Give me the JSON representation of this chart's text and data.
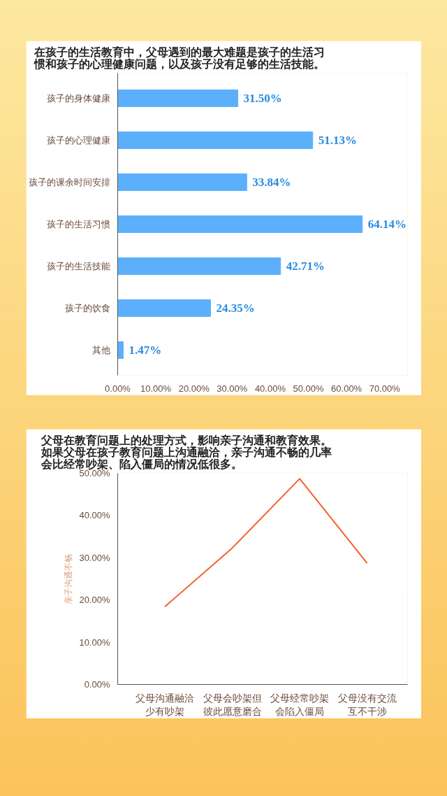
{
  "chart_data": [
    {
      "type": "bar",
      "orientation": "horizontal",
      "title": "在孩子的生活教育中，父母遇到的最大难题是孩子的生活习惯和孩子的心理健康问题，以及孩子没有足够的生活技能。",
      "categories": [
        "孩子的身体健康",
        "孩子的心理健康",
        "孩子的课余时间安排",
        "孩子的生活习惯",
        "孩子的生活技能",
        "孩子的饮食",
        "其他"
      ],
      "values": [
        31.5,
        51.13,
        33.84,
        64.14,
        42.71,
        24.35,
        1.47
      ],
      "value_labels": [
        "31.50%",
        "51.13%",
        "33.84%",
        "64.14%",
        "42.71%",
        "24.35%",
        "1.47%"
      ],
      "color": "#5cb0fb",
      "xlim": [
        0,
        76
      ],
      "xticks": [
        {
          "value": 0,
          "label": "0.00%"
        },
        {
          "value": 10,
          "label": "10.00%"
        },
        {
          "value": 20,
          "label": "20.00%"
        },
        {
          "value": 30,
          "label": "30.00%"
        },
        {
          "value": 40,
          "label": "40.00%"
        },
        {
          "value": 50,
          "label": "50.00%"
        },
        {
          "value": 60,
          "label": "60.00%"
        },
        {
          "value": 70,
          "label": "70.00%"
        }
      ]
    },
    {
      "type": "line",
      "title": "父母在教育问题上的处理方式，影响亲子沟通和教育效果。如果父母在孩子教育问题上沟通融洽，亲子沟通不畅的几率会比经常吵架、陷入僵局的情况低很多。",
      "ylabel": "亲子沟通不畅",
      "categories": [
        "父母沟通融洽少有吵架",
        "父母会吵架但彼此愿意磨合",
        "父母经常吵架会陷入僵局",
        "父母没有交流互不干涉"
      ],
      "values": [
        18.4,
        32.3,
        48.7,
        28.7
      ],
      "color": "#f0622a",
      "ylim": [
        0,
        50
      ],
      "yticks": [
        {
          "value": 0,
          "label": "0.00%"
        },
        {
          "value": 10,
          "label": "10.00%"
        },
        {
          "value": 20,
          "label": "20.00%"
        },
        {
          "value": 30,
          "label": "30.00%"
        },
        {
          "value": 40,
          "label": "40.00%"
        },
        {
          "value": 50,
          "label": "50.00%"
        }
      ]
    }
  ]
}
